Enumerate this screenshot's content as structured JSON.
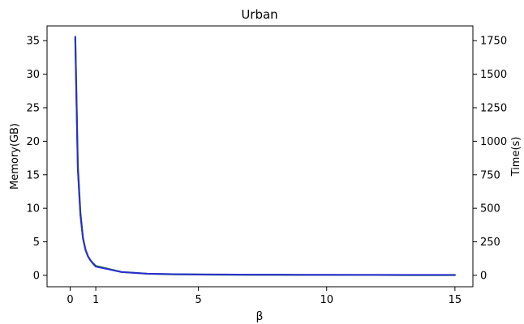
{
  "chart_data": {
    "type": "line",
    "title": "Urban",
    "xlabel": "β",
    "ylabel_left": "Memory(GB)",
    "ylabel_right": "Time(s)",
    "xlim": [
      -0.9,
      15.7
    ],
    "ylim_left": [
      -1.7,
      37.2
    ],
    "ylim_right": [
      -85,
      1860
    ],
    "xticks": [
      0,
      1,
      5,
      10,
      15
    ],
    "yticks_left": [
      0,
      5,
      10,
      15,
      20,
      25,
      30,
      35
    ],
    "yticks_right": [
      0,
      250,
      500,
      750,
      1000,
      1250,
      1500,
      1750
    ],
    "grid": false,
    "colors": {
      "memory": "#2b2bd6",
      "time": "#1f8a1f",
      "memory_label": "#3333cc",
      "time_label": "#228b22"
    },
    "series": [
      {
        "axis": "right",
        "x": [
          0.2,
          0.3,
          0.4,
          0.5,
          0.6,
          0.7,
          0.8,
          0.9,
          1.0,
          2.0,
          3.0,
          4.0,
          5.0,
          6.0,
          7.0,
          8.0,
          9.0,
          10.0,
          11.0,
          12.0,
          13.0,
          14.0,
          15.0
        ],
        "values": [
          1775,
          820,
          470,
          280,
          190,
          140,
          110,
          90,
          70,
          25,
          12,
          8,
          6,
          5,
          4,
          4,
          3,
          3,
          3,
          3,
          2,
          2,
          2
        ]
      },
      {
        "axis": "left",
        "x": [
          0.2,
          0.3,
          0.4,
          0.5,
          0.6,
          0.7,
          0.8,
          0.9,
          1.0,
          2.0,
          3.0,
          4.0,
          5.0,
          6.0,
          7.0,
          8.0,
          9.0,
          10.0,
          11.0,
          12.0,
          13.0,
          14.0,
          15.0
        ],
        "values": [
          35.6,
          15.8,
          9.0,
          5.5,
          3.8,
          2.8,
          2.2,
          1.7,
          1.3,
          0.5,
          0.25,
          0.18,
          0.14,
          0.12,
          0.1,
          0.09,
          0.08,
          0.08,
          0.07,
          0.07,
          0.06,
          0.06,
          0.06
        ]
      }
    ]
  }
}
